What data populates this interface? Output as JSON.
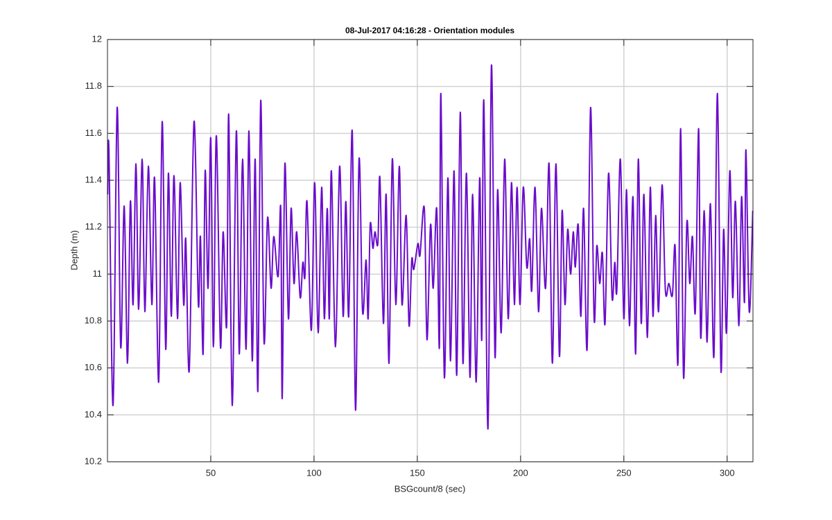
{
  "chart_data": {
    "type": "line",
    "title": "08-Jul-2017 04:16:28 - Orientation modules",
    "x_label": "BSGcount/8 (sec)",
    "y_label": "Depth (m)",
    "xlim": [
      0,
      312.5
    ],
    "ylim": [
      10.2,
      12
    ],
    "xticks": [
      50,
      100,
      150,
      200,
      250,
      300
    ],
    "yticks": [
      10.2,
      10.4,
      10.6,
      10.8,
      11,
      11.2,
      11.4,
      11.6,
      11.8,
      12
    ],
    "grid": true,
    "series": [
      {
        "color": "#6a0ccc",
        "x": [
          0.1,
          0.7,
          2.7,
          4.7,
          6.4,
          8.1,
          9.7,
          11.1,
          12.4,
          13.8,
          15.1,
          16.8,
          18.1,
          19.8,
          21.5,
          22.8,
          24.8,
          26.5,
          28.2,
          29.5,
          30.9,
          32.2,
          33.9,
          35.2,
          36.9,
          37.9,
          39.6,
          41.9,
          44.0,
          45.0,
          46.3,
          47.3,
          48.7,
          50.0,
          51.3,
          52.7,
          54.7,
          56.0,
          57.7,
          58.7,
          60.4,
          62.4,
          63.8,
          65.4,
          67.1,
          68.5,
          70.1,
          71.5,
          72.8,
          74.2,
          75.8,
          77.5,
          79.2,
          80.5,
          82.6,
          83.9,
          84.6,
          85.9,
          87.6,
          88.9,
          90.3,
          91.6,
          93.3,
          94.6,
          95.6,
          96.6,
          98.7,
          100.3,
          102.0,
          103.7,
          105.0,
          106.4,
          107.4,
          108.4,
          110.4,
          112.4,
          114.1,
          115.4,
          116.8,
          118.5,
          120.1,
          121.8,
          123.5,
          125.2,
          126.2,
          127.2,
          128.5,
          129.5,
          130.9,
          131.9,
          133.6,
          134.9,
          136.3,
          137.9,
          139.6,
          141.3,
          142.6,
          144.6,
          146.0,
          147.3,
          148.3,
          150.3,
          151.3,
          153.4,
          154.7,
          156.4,
          157.7,
          159.4,
          160.7,
          161.4,
          163.1,
          164.8,
          166.1,
          167.8,
          169.1,
          170.8,
          172.1,
          173.8,
          175.5,
          176.8,
          178.5,
          180.2,
          181.2,
          182.2,
          184.2,
          185.9,
          187.6,
          188.9,
          190.6,
          192.3,
          194.0,
          195.6,
          197.0,
          198.3,
          199.7,
          201.3,
          203.0,
          204.4,
          205.4,
          207.0,
          208.7,
          210.1,
          212.1,
          213.8,
          215.4,
          217.1,
          218.8,
          220.1,
          221.5,
          222.8,
          224.2,
          225.5,
          226.5,
          227.9,
          229.2,
          230.5,
          232.2,
          233.9,
          235.6,
          236.9,
          238.3,
          239.6,
          240.9,
          242.6,
          244.3,
          245.6,
          246.6,
          248.3,
          250.0,
          251.3,
          252.7,
          254.4,
          255.7,
          257.0,
          258.4,
          259.7,
          261.4,
          262.8,
          264.1,
          265.4,
          266.8,
          268.5,
          270.1,
          271.8,
          273.5,
          274.8,
          276.2,
          277.5,
          278.9,
          280.5,
          281.9,
          283.2,
          284.6,
          286.2,
          287.2,
          288.9,
          290.3,
          291.9,
          293.6,
          295.3,
          297.0,
          298.3,
          299.7,
          301.3,
          302.7,
          304.0,
          305.7,
          307.0,
          308.4,
          309.1,
          310.7,
          312.4
        ],
        "values": [
          11.34,
          11.53,
          10.44,
          11.71,
          10.69,
          11.29,
          10.62,
          11.31,
          10.87,
          11.47,
          10.85,
          11.49,
          10.84,
          11.46,
          10.87,
          11.41,
          10.54,
          11.65,
          10.68,
          11.43,
          10.82,
          11.42,
          10.81,
          11.39,
          10.87,
          11.15,
          10.59,
          11.65,
          10.87,
          11.16,
          10.66,
          11.44,
          10.94,
          11.58,
          10.69,
          11.59,
          10.69,
          11.18,
          10.78,
          11.68,
          10.44,
          11.61,
          10.66,
          11.49,
          10.68,
          11.61,
          10.63,
          11.49,
          10.5,
          11.74,
          10.71,
          11.24,
          10.94,
          11.16,
          10.99,
          11.28,
          10.47,
          11.47,
          10.81,
          11.28,
          10.96,
          11.18,
          10.9,
          11.05,
          10.99,
          11.31,
          10.76,
          11.39,
          10.75,
          11.37,
          10.81,
          11.28,
          10.81,
          11.44,
          10.69,
          11.46,
          10.82,
          11.31,
          10.82,
          11.61,
          10.42,
          11.49,
          10.84,
          11.06,
          10.81,
          11.21,
          11.11,
          11.18,
          11.13,
          11.41,
          10.79,
          11.34,
          10.62,
          11.49,
          10.87,
          11.46,
          10.87,
          11.25,
          10.78,
          11.06,
          11.02,
          11.13,
          11.08,
          11.28,
          10.72,
          11.21,
          10.94,
          11.28,
          10.69,
          11.77,
          10.56,
          11.41,
          10.63,
          11.44,
          10.57,
          11.69,
          10.62,
          11.43,
          10.56,
          11.34,
          10.54,
          11.41,
          10.72,
          11.74,
          10.34,
          11.89,
          10.65,
          11.36,
          10.75,
          11.49,
          10.81,
          11.39,
          10.87,
          11.37,
          10.87,
          11.37,
          11.03,
          11.15,
          10.93,
          11.37,
          10.84,
          11.28,
          10.94,
          11.47,
          10.62,
          11.47,
          10.65,
          11.27,
          10.87,
          11.19,
          11.0,
          11.18,
          11.03,
          11.21,
          10.82,
          11.28,
          10.68,
          11.71,
          10.81,
          11.12,
          10.96,
          11.09,
          10.79,
          11.43,
          10.9,
          11.05,
          10.93,
          11.49,
          10.81,
          11.36,
          10.78,
          11.33,
          10.66,
          11.49,
          10.79,
          11.34,
          10.73,
          11.37,
          10.82,
          11.25,
          10.84,
          11.38,
          10.93,
          10.96,
          10.91,
          11.12,
          10.62,
          11.62,
          10.56,
          11.22,
          10.96,
          11.16,
          10.84,
          11.62,
          10.73,
          11.27,
          10.71,
          11.3,
          10.65,
          11.77,
          10.59,
          11.19,
          10.75,
          11.44,
          10.9,
          11.31,
          10.78,
          11.33,
          10.88,
          11.53,
          10.84,
          11.27
        ]
      }
    ]
  }
}
